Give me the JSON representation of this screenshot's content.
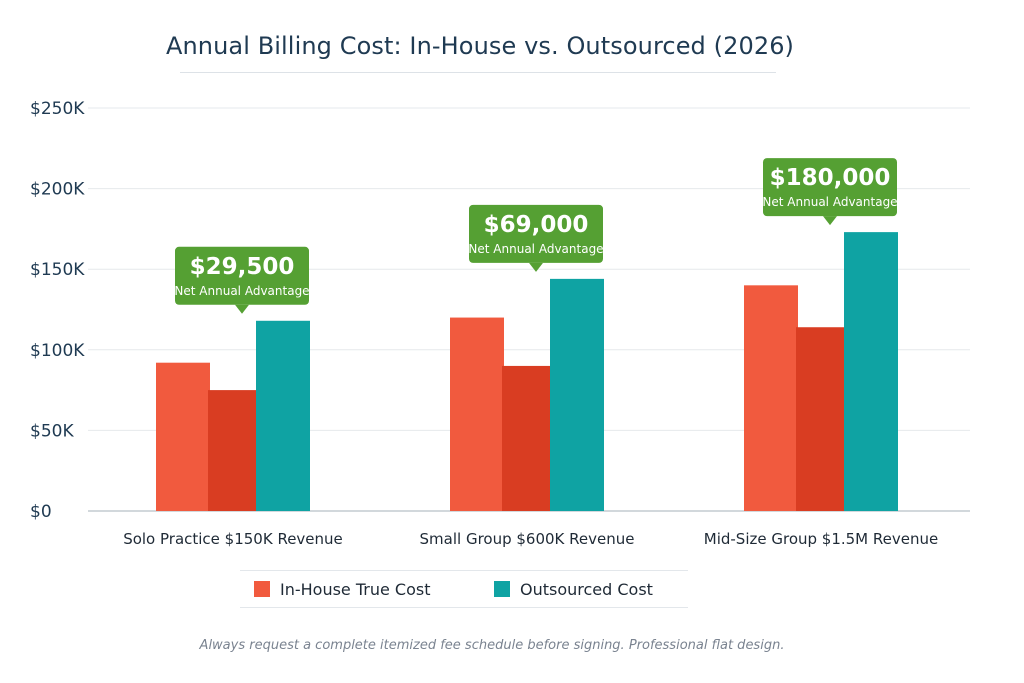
{
  "chart_data": {
    "type": "bar",
    "title": "Annual Billing Cost: In-House vs. Outsourced (2026)",
    "categories": [
      "Solo Practice $150K Revenue",
      "Small Group $600K Revenue",
      "Mid-Size Group $1.5M Revenue"
    ],
    "series": [
      {
        "name": "In-House True Cost",
        "values": [
          92000,
          120000,
          140000
        ],
        "color": "#f15a3e"
      },
      {
        "name": "",
        "values": [
          75000,
          90000,
          114000
        ],
        "color": "#d93d22"
      },
      {
        "name": "Outsourced Cost",
        "values": [
          118000,
          144000,
          173000
        ],
        "color": "#0fa3a3"
      }
    ],
    "ylim": [
      0,
      250000
    ],
    "yticks": [
      0,
      50000,
      100000,
      150000,
      200000,
      250000
    ],
    "ytick_labels": [
      "$0",
      "$50K",
      "$100K",
      "$150K",
      "$200K",
      "$250K"
    ],
    "grid": true,
    "legend_position": "bottom",
    "annotations": [
      {
        "category_index": 0,
        "value": "$29,500",
        "subtitle": "Net Annual Advantage"
      },
      {
        "category_index": 1,
        "value": "$69,000",
        "subtitle": "Net Annual Advantage"
      },
      {
        "category_index": 2,
        "value": "$180,000",
        "subtitle": "Net Annual Advantage"
      }
    ],
    "callout_color": "#55a033"
  },
  "legend": {
    "items": [
      {
        "label": "In-House True Cost",
        "color": "#f15a3e"
      },
      {
        "label": "Outsourced Cost",
        "color": "#0fa3a3"
      }
    ]
  },
  "footnote": "Always request a complete itemized fee schedule before signing. Professional flat design."
}
